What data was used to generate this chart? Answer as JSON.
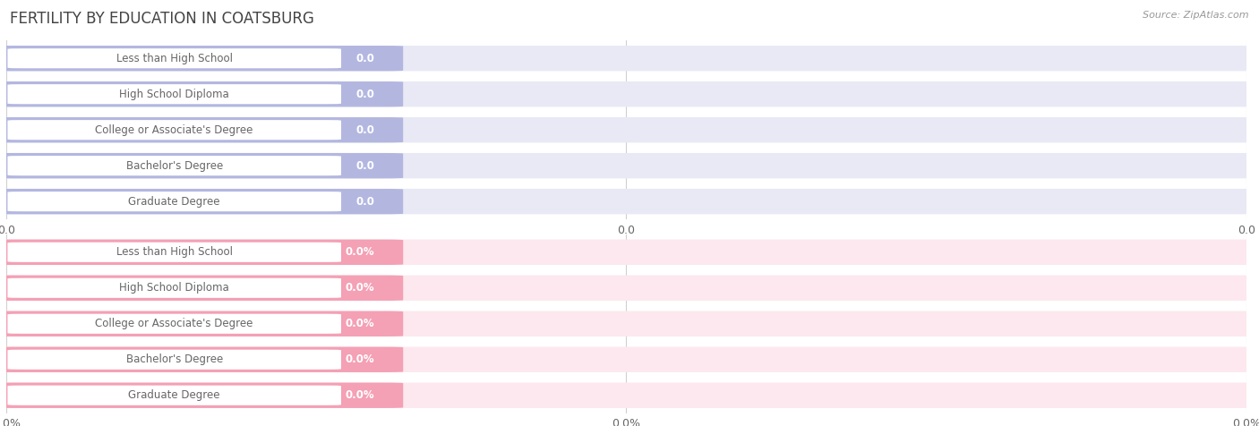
{
  "title": "FERTILITY BY EDUCATION IN COATSBURG",
  "source": "Source: ZipAtlas.com",
  "categories": [
    "Less than High School",
    "High School Diploma",
    "College or Associate's Degree",
    "Bachelor's Degree",
    "Graduate Degree"
  ],
  "values_top": [
    0.0,
    0.0,
    0.0,
    0.0,
    0.0
  ],
  "values_bottom": [
    0.0,
    0.0,
    0.0,
    0.0,
    0.0
  ],
  "bar_color_top": "#b3b7e0",
  "bar_color_bottom": "#f4a0b5",
  "bg_bar_color_top": "#e8e9f5",
  "bg_bar_color_bottom": "#fce8ee",
  "text_color": "#666666",
  "title_color": "#444444",
  "grid_color": "#d0d0d0",
  "value_color": "#ffffff",
  "figsize": [
    14.06,
    4.76
  ],
  "dpi": 100
}
